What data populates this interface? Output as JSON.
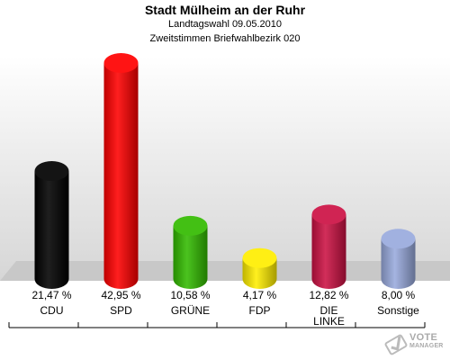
{
  "header": {
    "title": "Stadt Mülheim an der Ruhr",
    "subtitle1": "Landtagswahl 09.05.2010",
    "subtitle2": "Zweitstimmen Briefwahlbezirk 020"
  },
  "chart_data": {
    "type": "bar",
    "title": "Stadt Mülheim an der Ruhr",
    "subtitle": "Landtagswahl 09.05.2010 / Zweitstimmen Briefwahlbezirk 020",
    "categories": [
      "CDU",
      "SPD",
      "GRÜNE",
      "FDP",
      "DIE LINKE",
      "Sonstige"
    ],
    "values": [
      21.47,
      42.95,
      10.58,
      4.17,
      12.82,
      8.0
    ],
    "value_labels": [
      "21,47 %",
      "42,95 %",
      "10,58 %",
      "4,17 %",
      "12,82 %",
      "8,00 %"
    ],
    "colors": [
      "#000000",
      "#ff0000",
      "#33bb00",
      "#ffee00",
      "#cc1144",
      "#99aadd"
    ],
    "unit": "%",
    "grid": false,
    "legend": "none"
  },
  "logo": {
    "line1": "VOTE",
    "line2": "MANAGER"
  }
}
